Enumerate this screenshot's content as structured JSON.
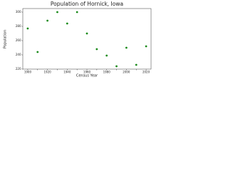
{
  "chart_data": {
    "type": "scatter",
    "title": "Population of Hornick, Iowa",
    "x_label": "Census Year",
    "y_label": "Population",
    "series": [
      {
        "name": "Population",
        "color": "#1a8a1a",
        "x": [
          1900,
          1910,
          1920,
          1930,
          1940,
          1950,
          1960,
          1970,
          1980,
          1990,
          2000,
          2010,
          2020
        ],
        "values": [
          277,
          244,
          288,
          300,
          284,
          300,
          270,
          248,
          239,
          224,
          250,
          226,
          252
        ]
      }
    ],
    "xlim": [
      1895,
      2025
    ],
    "xticks": [
      1900,
      1910,
      1920,
      1930,
      1940,
      1950,
      1960,
      1970,
      1980,
      1990,
      2000,
      2010,
      2020
    ],
    "ylim": [
      220,
      305
    ],
    "yticks": [
      220,
      240,
      260,
      280,
      300
    ]
  }
}
